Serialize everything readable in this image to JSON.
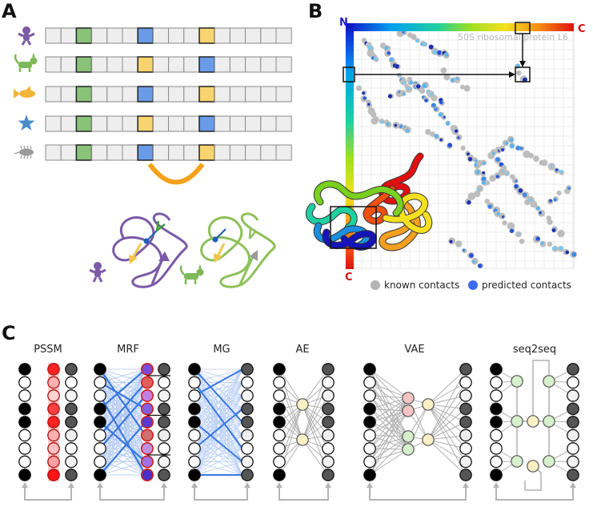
{
  "panels": {
    "a": {
      "label": "A"
    },
    "b": {
      "label": "B"
    },
    "c": {
      "label": "C"
    }
  },
  "panel_a": {
    "species": [
      {
        "icon": "person-icon",
        "color": "#7b5aa6"
      },
      {
        "icon": "cat-icon",
        "color": "#7fb85a"
      },
      {
        "icon": "fish-icon",
        "color": "#f2b53a"
      },
      {
        "icon": "starfish-icon",
        "color": "#4a8cc9"
      },
      {
        "icon": "bacterium-icon",
        "color": "#9a9a9a"
      }
    ],
    "column_colors": {
      "green": "#8ac27a",
      "blue": "#6a9be6",
      "yellow": "#f8d470"
    },
    "coupling_color": "#f5a11a",
    "alignment": [
      [
        "green",
        "blue",
        "yellow"
      ],
      [
        "green",
        "yellow",
        "blue"
      ],
      [
        "green",
        "blue",
        "yellow"
      ],
      [
        "green",
        "yellow",
        "blue"
      ],
      [
        "green",
        "blue",
        "yellow"
      ]
    ]
  },
  "panel_b": {
    "axis_top_start": "N",
    "axis_top_end": "C",
    "axis_left_end": "C",
    "watermark": "50S ribosomal protein L6",
    "legend": [
      {
        "label": "known contacts",
        "color": "#b4b4b4"
      },
      {
        "label": "predicted contacts",
        "color": "#3b6cf0"
      }
    ]
  },
  "panel_c": {
    "models": [
      {
        "name": "PSSM"
      },
      {
        "name": "MRF"
      },
      {
        "name": "MG"
      },
      {
        "name": "AE"
      },
      {
        "name": "VAE"
      },
      {
        "name": "seq2seq"
      }
    ]
  }
}
